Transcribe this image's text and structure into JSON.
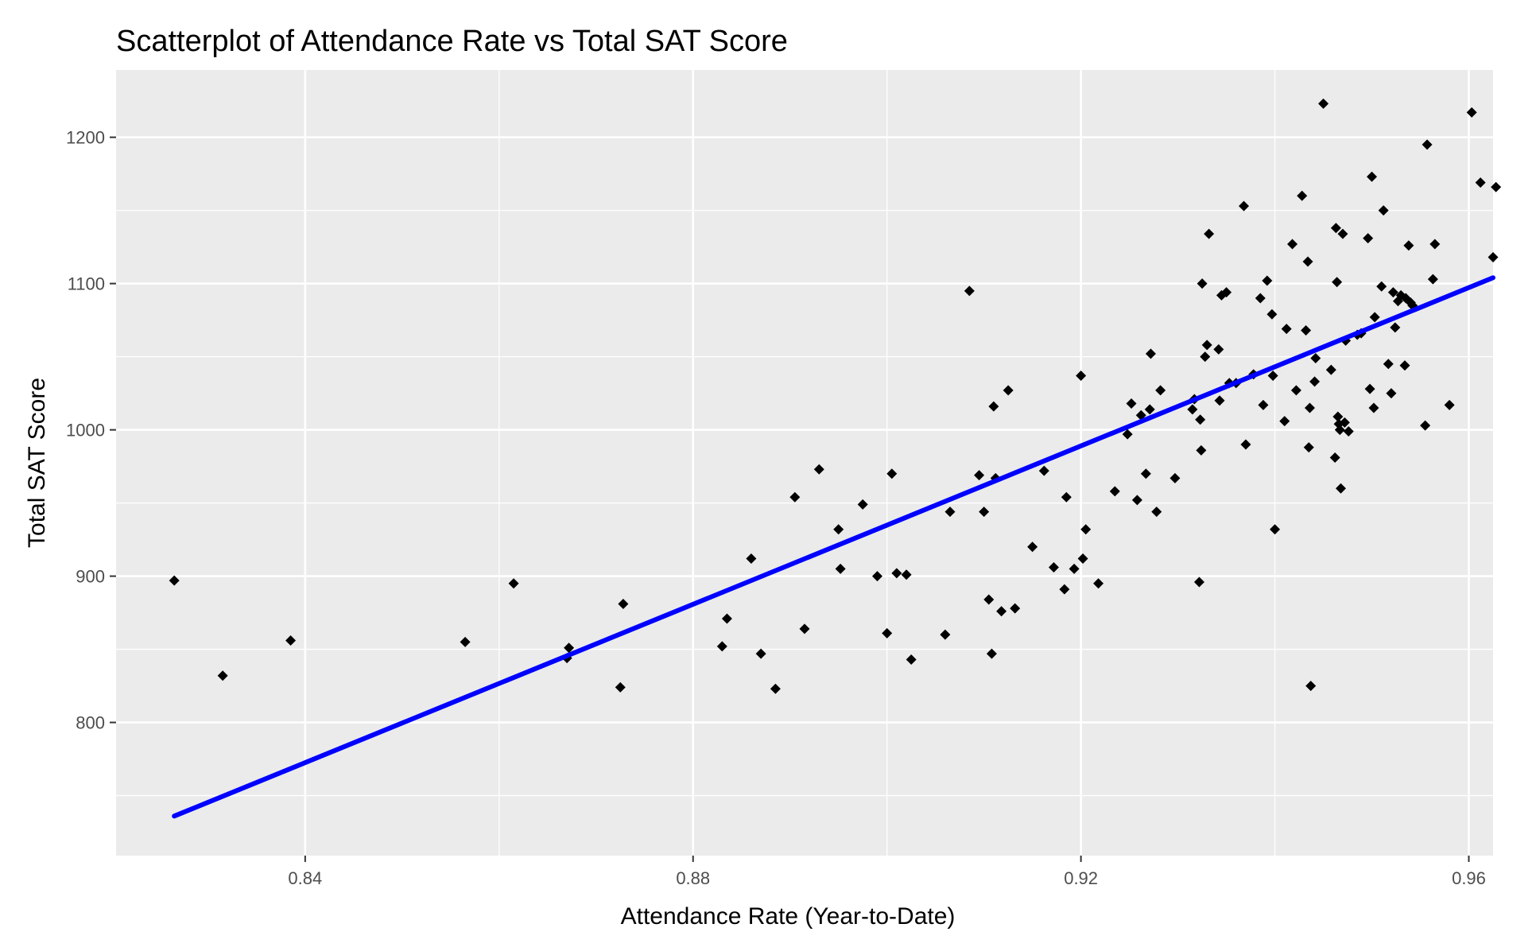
{
  "chart_data": {
    "type": "scatter",
    "title": "Scatterplot of Attendance Rate vs Total SAT Score",
    "xlabel": "Attendance Rate (Year-to-Date)",
    "ylabel": "Total SAT Score",
    "xlim": [
      0.8205,
      0.9625
    ],
    "ylim": [
      709,
      1246
    ],
    "x_ticks": [
      0.84,
      0.88,
      0.92,
      0.96
    ],
    "x_tick_labels": [
      "0.84",
      "0.88",
      "0.92",
      "0.96"
    ],
    "y_ticks": [
      800,
      900,
      1000,
      1100,
      1200
    ],
    "y_tick_labels": [
      "800",
      "900",
      "1000",
      "1100",
      "1200"
    ],
    "grid": true,
    "panel_color": "#ebebeb",
    "point_color": "#000000",
    "line_color": "#0000ff",
    "series": [
      {
        "points": [
          [
            0.8265,
            897
          ],
          [
            0.8315,
            832
          ],
          [
            0.8385,
            856
          ],
          [
            0.8565,
            855
          ],
          [
            0.8615,
            895
          ],
          [
            0.867,
            844
          ],
          [
            0.8672,
            851
          ],
          [
            0.8725,
            824
          ],
          [
            0.8728,
            881
          ],
          [
            0.883,
            852
          ],
          [
            0.8835,
            871
          ],
          [
            0.886,
            912
          ],
          [
            0.887,
            847
          ],
          [
            0.8885,
            823
          ],
          [
            0.8905,
            954
          ],
          [
            0.8915,
            864
          ],
          [
            0.893,
            973
          ],
          [
            0.895,
            932
          ],
          [
            0.8952,
            905
          ],
          [
            0.8975,
            949
          ],
          [
            0.899,
            900
          ],
          [
            0.9,
            861
          ],
          [
            0.9005,
            970
          ],
          [
            0.901,
            902
          ],
          [
            0.902,
            901
          ],
          [
            0.9025,
            843
          ],
          [
            0.906,
            860
          ],
          [
            0.9065,
            944
          ],
          [
            0.9085,
            1095
          ],
          [
            0.9095,
            969
          ],
          [
            0.91,
            944
          ],
          [
            0.9105,
            884
          ],
          [
            0.9108,
            847
          ],
          [
            0.911,
            1016
          ],
          [
            0.9112,
            967
          ],
          [
            0.9118,
            876
          ],
          [
            0.9125,
            1027
          ],
          [
            0.9132,
            878
          ],
          [
            0.915,
            920
          ],
          [
            0.9162,
            972
          ],
          [
            0.9172,
            906
          ],
          [
            0.9183,
            891
          ],
          [
            0.9185,
            954
          ],
          [
            0.9193,
            905
          ],
          [
            0.92,
            1037
          ],
          [
            0.9202,
            912
          ],
          [
            0.9205,
            932
          ],
          [
            0.9218,
            895
          ],
          [
            0.9235,
            958
          ],
          [
            0.9248,
            997
          ],
          [
            0.9252,
            1018
          ],
          [
            0.9258,
            952
          ],
          [
            0.9262,
            1010
          ],
          [
            0.9267,
            970
          ],
          [
            0.9271,
            1014
          ],
          [
            0.9272,
            1052
          ],
          [
            0.9278,
            944
          ],
          [
            0.9282,
            1027
          ],
          [
            0.9297,
            967
          ],
          [
            0.9315,
            1014
          ],
          [
            0.9317,
            1021
          ],
          [
            0.9322,
            896
          ],
          [
            0.9323,
            1007
          ],
          [
            0.9324,
            986
          ],
          [
            0.9325,
            1100
          ],
          [
            0.9328,
            1050
          ],
          [
            0.933,
            1058
          ],
          [
            0.9332,
            1134
          ],
          [
            0.9342,
            1055
          ],
          [
            0.9343,
            1020
          ],
          [
            0.9345,
            1092
          ],
          [
            0.935,
            1094
          ],
          [
            0.9353,
            1032
          ],
          [
            0.936,
            1032
          ],
          [
            0.9368,
            1153
          ],
          [
            0.937,
            990
          ],
          [
            0.9378,
            1038
          ],
          [
            0.9385,
            1090
          ],
          [
            0.9388,
            1017
          ],
          [
            0.9392,
            1102
          ],
          [
            0.9397,
            1079
          ],
          [
            0.9398,
            1037
          ],
          [
            0.94,
            932
          ],
          [
            0.941,
            1006
          ],
          [
            0.9412,
            1069
          ],
          [
            0.9418,
            1127
          ],
          [
            0.9422,
            1027
          ],
          [
            0.9428,
            1160
          ],
          [
            0.9432,
            1068
          ],
          [
            0.9434,
            1115
          ],
          [
            0.9435,
            988
          ],
          [
            0.9436,
            1015
          ],
          [
            0.9437,
            825
          ],
          [
            0.9441,
            1033
          ],
          [
            0.9442,
            1049
          ],
          [
            0.945,
            1223
          ],
          [
            0.9458,
            1041
          ],
          [
            0.9462,
            981
          ],
          [
            0.9463,
            1138
          ],
          [
            0.9464,
            1101
          ],
          [
            0.9465,
            1009
          ],
          [
            0.9466,
            1004
          ],
          [
            0.9467,
            1000
          ],
          [
            0.9468,
            960
          ],
          [
            0.947,
            1134
          ],
          [
            0.9472,
            1005
          ],
          [
            0.9473,
            1061
          ],
          [
            0.9476,
            999
          ],
          [
            0.9485,
            1065
          ],
          [
            0.9489,
            1066
          ],
          [
            0.9496,
            1131
          ],
          [
            0.9498,
            1028
          ],
          [
            0.95,
            1173
          ],
          [
            0.9502,
            1015
          ],
          [
            0.9503,
            1077
          ],
          [
            0.951,
            1098
          ],
          [
            0.9512,
            1150
          ],
          [
            0.9517,
            1045
          ],
          [
            0.952,
            1025
          ],
          [
            0.9522,
            1094
          ],
          [
            0.9524,
            1070
          ],
          [
            0.9527,
            1088
          ],
          [
            0.953,
            1092
          ],
          [
            0.9534,
            1044
          ],
          [
            0.9535,
            1090
          ],
          [
            0.9538,
            1126
          ],
          [
            0.954,
            1087
          ],
          [
            0.9542,
            1085
          ],
          [
            0.9555,
            1003
          ],
          [
            0.9557,
            1195
          ],
          [
            0.9563,
            1103
          ],
          [
            0.9565,
            1127
          ],
          [
            0.958,
            1017
          ],
          [
            0.9603,
            1217
          ],
          [
            0.9612,
            1169
          ],
          [
            0.9625,
            1118
          ],
          [
            0.9628,
            1166
          ]
        ]
      }
    ],
    "trend_line": {
      "points": [
        [
          0.8265,
          736
        ],
        [
          0.9625,
          1104
        ]
      ]
    }
  }
}
